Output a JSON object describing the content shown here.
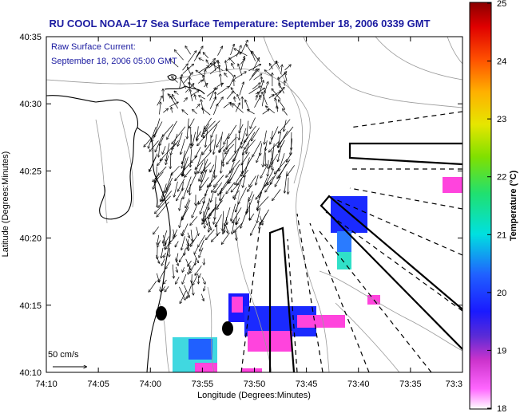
{
  "title": "RU COOL  NOAA–17  Sea Surface Temperature:  September 18, 2006 0339 GMT",
  "legend": {
    "line1": "Raw Surface Current:",
    "line2": "September 18, 2006 05:00 GMT",
    "scale_label": "50 cm/s"
  },
  "axes": {
    "xlabel": "Longitude (Degrees:Minutes)",
    "ylabel": "Latitude (Degrees:Minutes)",
    "xticks": [
      "74:10",
      "74:05",
      "74:00",
      "73:55",
      "73:50",
      "73:45",
      "73:40",
      "73:35",
      "73:3"
    ],
    "yticks": [
      "40:35",
      "40:30",
      "40:25",
      "40:20",
      "40:15",
      "40:10"
    ]
  },
  "colorbar": {
    "label": "Temperature (°C)",
    "ticks": [
      "25",
      "24",
      "23",
      "22",
      "21",
      "20",
      "19",
      "18"
    ],
    "range": [
      18,
      25
    ]
  },
  "colors": {
    "title": "#1a1aa0",
    "coast": "#000000",
    "bathymetry": "#9a9a9a",
    "vectors": "#000000"
  }
}
